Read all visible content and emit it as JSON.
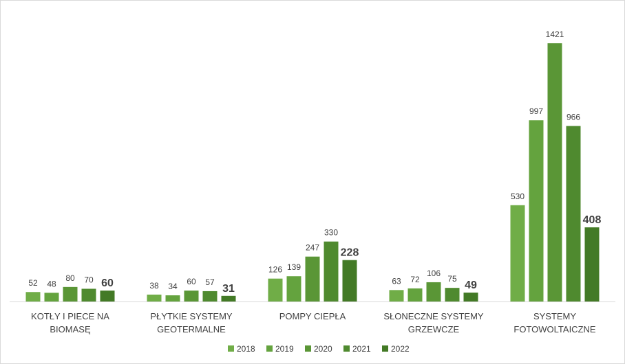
{
  "chart_data": {
    "type": "bar",
    "categories": [
      [
        "KOTŁY I PIECE NA",
        "BIOMASĘ"
      ],
      [
        "PŁYTKIE SYSTEMY",
        "GEOTERMALNE"
      ],
      [
        "POMPY CIEPŁA"
      ],
      [
        "SŁONECZNE SYSTEMY",
        "GRZEWCZE"
      ],
      [
        "SYSTEMY",
        "FOTOWOLTAICZNE"
      ]
    ],
    "series": [
      {
        "name": "2018",
        "color": "#70ad47",
        "values": [
          52,
          38,
          126,
          63,
          530
        ]
      },
      {
        "name": "2019",
        "color": "#64a33e",
        "values": [
          48,
          34,
          139,
          72,
          997
        ]
      },
      {
        "name": "2020",
        "color": "#5a9636",
        "values": [
          80,
          60,
          247,
          106,
          1421
        ]
      },
      {
        "name": "2021",
        "color": "#4f8a2f",
        "values": [
          70,
          57,
          330,
          75,
          966
        ]
      },
      {
        "name": "2022",
        "color": "#437a26",
        "values": [
          60,
          31,
          228,
          49,
          408
        ]
      }
    ],
    "ylim": [
      0,
      1421
    ],
    "legend_position": "bottom",
    "grid": false,
    "data_labels": true,
    "emphasized_series": "2022"
  }
}
